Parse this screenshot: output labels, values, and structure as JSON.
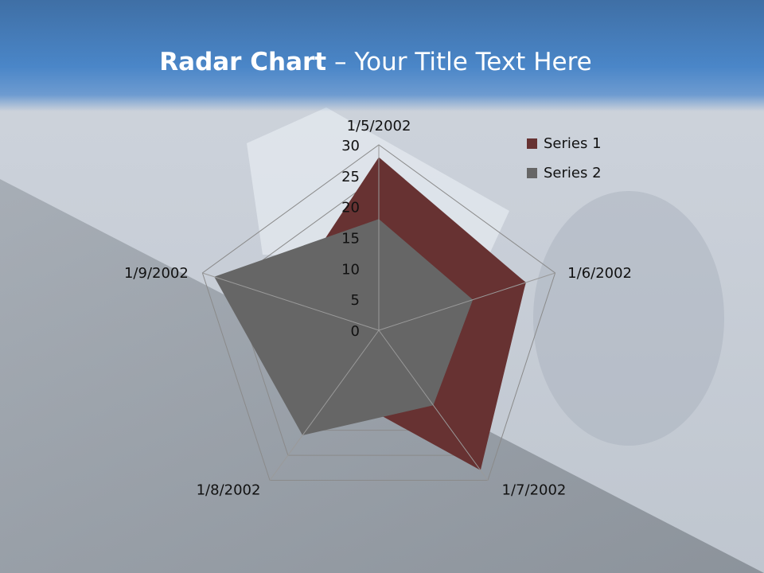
{
  "slide": {
    "title_bold": "Radar Chart",
    "title_rest": " – Your Title Text Here"
  },
  "colors": {
    "header": "#4a86c8",
    "series1": "#673232",
    "series2": "#666666",
    "grid": "#8a8a8a"
  },
  "chart_data": {
    "type": "radar",
    "title": "",
    "categories": [
      "1/5/2002",
      "1/6/2002",
      "1/7/2002",
      "1/8/2002",
      "1/9/2002"
    ],
    "series": [
      {
        "name": "Series 1",
        "values": [
          28,
          25,
          28,
          12,
          16
        ]
      },
      {
        "name": "Series 2",
        "values": [
          18,
          16,
          15,
          21,
          28
        ]
      }
    ],
    "rlim": [
      0,
      30
    ],
    "ticks": [
      "0",
      "5",
      "10",
      "15",
      "20",
      "25",
      "30"
    ],
    "grid": true,
    "legend": "top-right"
  }
}
